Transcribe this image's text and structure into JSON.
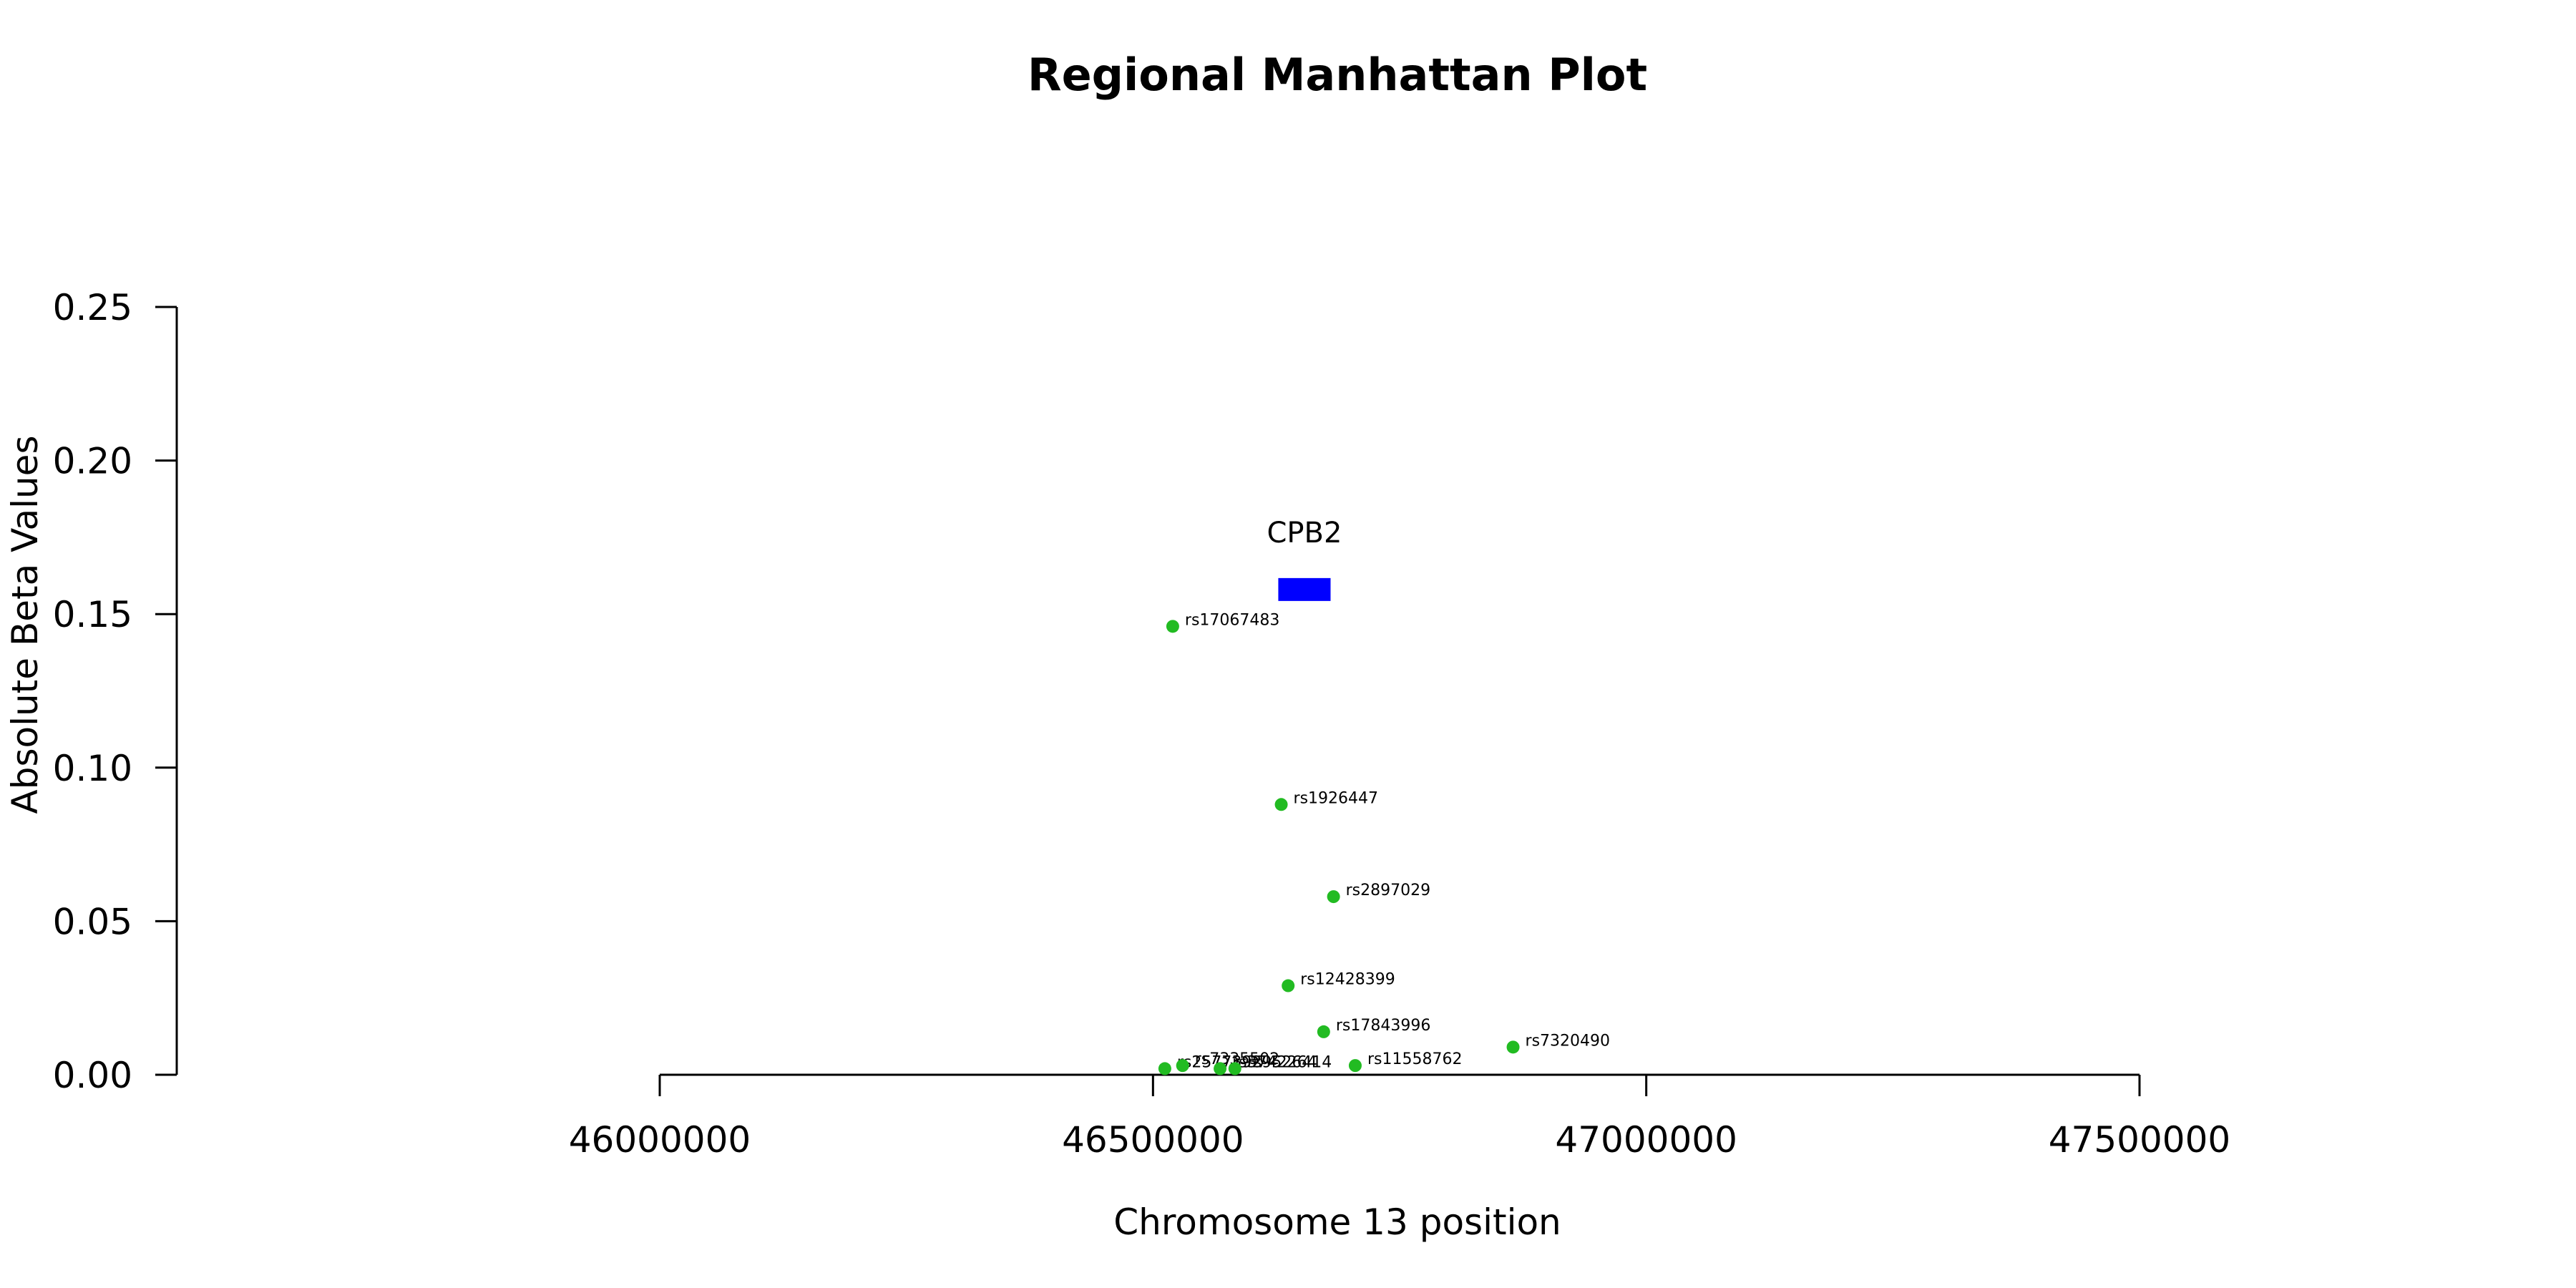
{
  "chart_data": {
    "type": "scatter",
    "title": "Regional Manhattan Plot",
    "xlabel": "Chromosome 13 position",
    "ylabel": "Absolute Beta Values",
    "xlim": [
      45500000,
      48000000
    ],
    "ylim": [
      0,
      0.25
    ],
    "x_axis_range": [
      46000000,
      47500000
    ],
    "x_ticks": [
      46000000,
      46500000,
      47000000,
      47500000
    ],
    "x_tick_labels": [
      "46000000",
      "46500000",
      "47000000",
      "47500000"
    ],
    "y_ticks": [
      0,
      0.05,
      0.1,
      0.15,
      0.2,
      0.25
    ],
    "y_tick_labels": [
      "0.00",
      "0.05",
      "0.10",
      "0.15",
      "0.20",
      "0.25"
    ],
    "grid": false,
    "point_color": "#22bb22",
    "gene_color": "#0000ff",
    "genes": [
      {
        "name": "CPB2",
        "start": 46627000,
        "end": 46680000,
        "y": 0.158
      }
    ],
    "points": [
      {
        "id": "rs17067483",
        "x": 46520000,
        "y": 0.146
      },
      {
        "id": "rs1926447",
        "x": 46630000,
        "y": 0.088
      },
      {
        "id": "rs2897029",
        "x": 46683000,
        "y": 0.058
      },
      {
        "id": "rs12428399",
        "x": 46637000,
        "y": 0.029
      },
      {
        "id": "rs17843996",
        "x": 46673000,
        "y": 0.014
      },
      {
        "id": "rs7320490",
        "x": 46865000,
        "y": 0.009
      },
      {
        "id": "rs11558762",
        "x": 46705000,
        "y": 0.003
      },
      {
        "id": "rs2577392",
        "x": 46512000,
        "y": 0.002
      },
      {
        "id": "rs7335502",
        "x": 46530000,
        "y": 0.003
      },
      {
        "id": "rs3742264",
        "x": 46568000,
        "y": 0.002
      },
      {
        "id": "rs9526414",
        "x": 46583000,
        "y": 0.002
      }
    ]
  }
}
